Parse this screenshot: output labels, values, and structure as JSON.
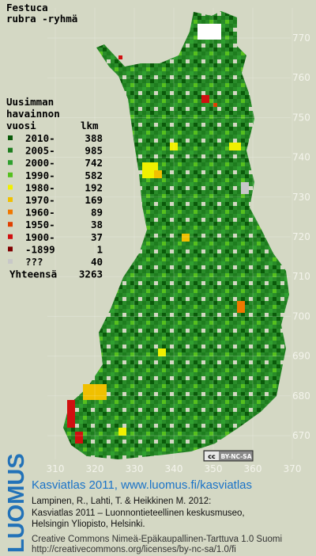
{
  "header": {
    "title_lines": [
      "Festuca",
      "rubra -ryhmä"
    ]
  },
  "legend": {
    "heading_lines": [
      "Uusimman",
      "havainnon"
    ],
    "col_year": "vuosi",
    "col_count": "lkm",
    "rows": [
      {
        "label": "2010-",
        "count": 388,
        "color": "#0a5a0a"
      },
      {
        "label": "2005-",
        "count": 985,
        "color": "#1e7d1e"
      },
      {
        "label": "2000-",
        "count": 742,
        "color": "#2fa02f"
      },
      {
        "label": "1990-",
        "count": 582,
        "color": "#55c01e"
      },
      {
        "label": "1980-",
        "count": 192,
        "color": "#f0f000"
      },
      {
        "label": "1970-",
        "count": 169,
        "color": "#f0c000"
      },
      {
        "label": "1960-",
        "count": 89,
        "color": "#f07800"
      },
      {
        "label": "1950-",
        "count": 38,
        "color": "#e04000"
      },
      {
        "label": "1900-",
        "count": 37,
        "color": "#d01010"
      },
      {
        "label": "-1899",
        "count": 1,
        "color": "#800000"
      },
      {
        "label": "???",
        "count": 40,
        "color": "#c8c8c8"
      }
    ],
    "total_label": "Yhteensä",
    "total": 3263
  },
  "map": {
    "xticks": [
      310,
      320,
      330,
      340,
      350,
      360,
      370
    ],
    "yticks": [
      670,
      680,
      690,
      700,
      710,
      720,
      730,
      740,
      750,
      760,
      770
    ]
  },
  "badge": {
    "cc": "cc",
    "license": "BY-NC-SA"
  },
  "footer": {
    "logo": "LUOMUS",
    "headline": "Kasviatlas 2011, www.luomus.fi/kasviatlas",
    "citation": [
      "Lampinen, R., Lahti, T. & Heikkinen M. 2012:",
      "Kasviatlas 2011 – Luonnontieteellinen keskusmuseo,",
      "Helsingin Yliopisto, Helsinki."
    ],
    "license_lines": [
      "Creative Commons Nimeä-Epäkaupallinen-Tarttuva 1.0 Suomi",
      "http://creativecommons.org/licenses/by-nc-sa/1.0/fi"
    ]
  }
}
